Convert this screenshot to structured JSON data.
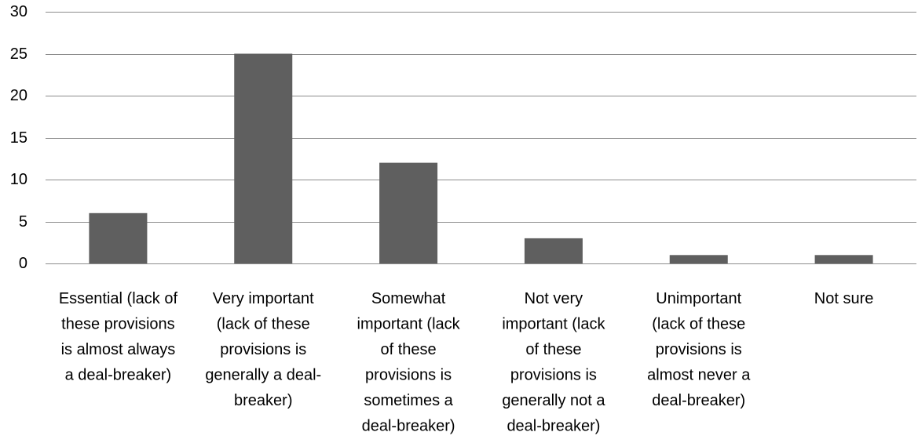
{
  "chart_data": {
    "type": "bar",
    "categories": [
      "Essential (lack of these provisions is almost always a deal-breaker)",
      "Very important (lack of these provisions is generally a deal-breaker)",
      "Somewhat important (lack of these provisions is sometimes a deal-breaker)",
      "Not very important (lack of these provisions is generally not a deal-breaker)",
      "Unimportant (lack of these provisions is almost never a deal-breaker)",
      "Not sure"
    ],
    "category_label_lines": [
      [
        "Essential (lack of",
        "these provisions",
        "is almost always",
        "a deal-breaker)"
      ],
      [
        "Very important",
        "(lack of these",
        "provisions is",
        "generally a deal-",
        "breaker)"
      ],
      [
        "Somewhat",
        "important (lack",
        "of these",
        "provisions is",
        "sometimes a",
        "deal-breaker)"
      ],
      [
        "Not very",
        "important (lack",
        "of these",
        "provisions is",
        "generally not a",
        "deal-breaker)"
      ],
      [
        "Unimportant",
        "(lack of these",
        "provisions is",
        "almost never a",
        "deal-breaker)"
      ],
      [
        "Not sure"
      ]
    ],
    "values": [
      6,
      25,
      12,
      3,
      1,
      1
    ],
    "ylim": [
      0,
      30
    ],
    "yticks": [
      0,
      5,
      10,
      15,
      20,
      25,
      30
    ],
    "title": "",
    "xlabel": "",
    "ylabel": "",
    "grid": true,
    "legend": "none",
    "bar_color": "#5f5f5f",
    "grid_color": "#8c8c8c"
  }
}
